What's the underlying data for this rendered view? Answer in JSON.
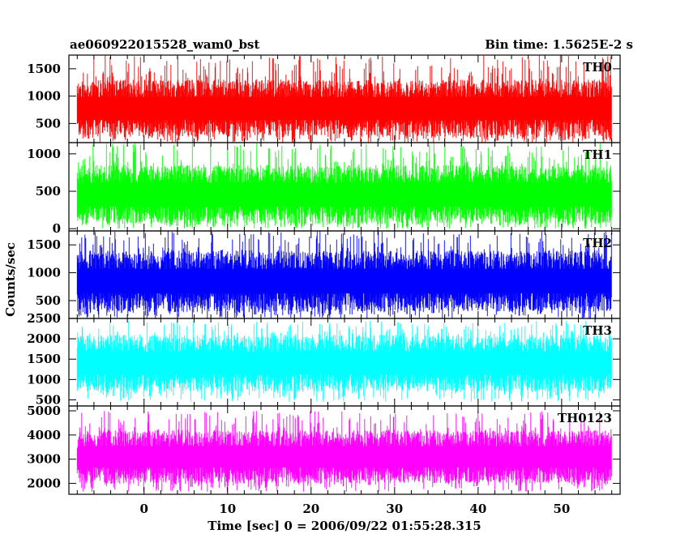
{
  "header": {
    "title": "ae060922015528_wam0_bst",
    "bin_time": "Bin time: 1.5625E-2 s"
  },
  "chart_data": {
    "type": "line",
    "title": "ae060922015528_wam0_bst",
    "xlabel": "Time [sec] 0 = 2006/09/22 01:55:28.315",
    "ylabel": "Counts/sec",
    "xlim": [
      -9,
      57
    ],
    "x_ticks": [
      0,
      10,
      20,
      30,
      40,
      50
    ],
    "x_data_range": [
      -8,
      56
    ],
    "legend": "none",
    "grid": false,
    "panels": [
      {
        "name": "TH0",
        "color": "#ff0000",
        "ylim": [
          150,
          1750
        ],
        "y_ticks": [
          500,
          1000,
          1500
        ],
        "typical_range": [
          250,
          1300
        ],
        "extreme_range": [
          150,
          1750
        ]
      },
      {
        "name": "TH1",
        "color": "#00ff00",
        "ylim": [
          -30,
          1150
        ],
        "y_ticks": [
          0,
          500,
          1000
        ],
        "typical_range": [
          60,
          850
        ],
        "extreme_range": [
          0,
          1150
        ]
      },
      {
        "name": "TH2",
        "color": "#0000ff",
        "ylim": [
          180,
          1750
        ],
        "y_ticks": [
          500,
          1000,
          1500
        ],
        "typical_range": [
          300,
          1400
        ],
        "extreme_range": [
          180,
          1750
        ]
      },
      {
        "name": "TH3",
        "color": "#00ffff",
        "ylim": [
          350,
          2500
        ],
        "y_ticks": [
          500,
          1000,
          1500,
          2000,
          2500
        ],
        "typical_range": [
          700,
          2100
        ],
        "extreme_range": [
          450,
          2450
        ]
      },
      {
        "name": "TH0123",
        "color": "#ff00ff",
        "ylim": [
          1550,
          5200
        ],
        "y_ticks": [
          2000,
          3000,
          4000,
          5000
        ],
        "typical_range": [
          2000,
          4200
        ],
        "extreme_range": [
          1650,
          5000
        ]
      }
    ]
  }
}
